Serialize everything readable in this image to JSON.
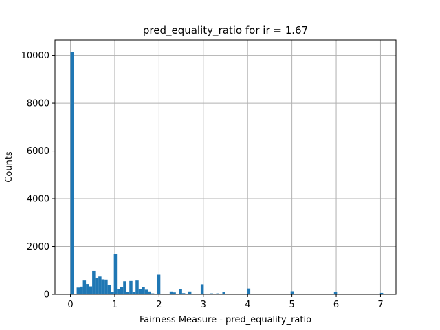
{
  "chart_data": {
    "type": "bar",
    "title": "pred_equality_ratio for ir = 1.67",
    "xlabel": "Fairness Measure - pred_equality_ratio",
    "ylabel": "Counts",
    "xlim": [
      -0.35,
      7.35
    ],
    "ylim": [
      0,
      10650
    ],
    "x_ticks": [
      0,
      1,
      2,
      3,
      4,
      5,
      6,
      7
    ],
    "x_tick_labels": [
      "0",
      "1",
      "2",
      "3",
      "4",
      "5",
      "6",
      "7"
    ],
    "y_ticks": [
      0,
      2000,
      4000,
      6000,
      8000,
      10000
    ],
    "y_tick_labels": [
      "0",
      "2000",
      "4000",
      "6000",
      "8000",
      "10000"
    ],
    "grid": true,
    "bin_width": 0.07,
    "bins": [
      {
        "x": 0.0,
        "count": 10150
      },
      {
        "x": 0.14,
        "count": 280
      },
      {
        "x": 0.21,
        "count": 320
      },
      {
        "x": 0.28,
        "count": 600
      },
      {
        "x": 0.35,
        "count": 430
      },
      {
        "x": 0.42,
        "count": 330
      },
      {
        "x": 0.49,
        "count": 980
      },
      {
        "x": 0.56,
        "count": 680
      },
      {
        "x": 0.63,
        "count": 740
      },
      {
        "x": 0.7,
        "count": 620
      },
      {
        "x": 0.77,
        "count": 610
      },
      {
        "x": 0.84,
        "count": 390
      },
      {
        "x": 0.91,
        "count": 110
      },
      {
        "x": 0.98,
        "count": 1690
      },
      {
        "x": 1.05,
        "count": 220
      },
      {
        "x": 1.12,
        "count": 310
      },
      {
        "x": 1.19,
        "count": 540
      },
      {
        "x": 1.26,
        "count": 100
      },
      {
        "x": 1.33,
        "count": 580
      },
      {
        "x": 1.4,
        "count": 100
      },
      {
        "x": 1.47,
        "count": 600
      },
      {
        "x": 1.54,
        "count": 220
      },
      {
        "x": 1.61,
        "count": 300
      },
      {
        "x": 1.68,
        "count": 190
      },
      {
        "x": 1.75,
        "count": 120
      },
      {
        "x": 1.82,
        "count": 40
      },
      {
        "x": 1.96,
        "count": 820
      },
      {
        "x": 2.24,
        "count": 120
      },
      {
        "x": 2.31,
        "count": 80
      },
      {
        "x": 2.45,
        "count": 230
      },
      {
        "x": 2.52,
        "count": 50
      },
      {
        "x": 2.66,
        "count": 120
      },
      {
        "x": 2.94,
        "count": 420
      },
      {
        "x": 3.15,
        "count": 40
      },
      {
        "x": 3.29,
        "count": 40
      },
      {
        "x": 3.43,
        "count": 90
      },
      {
        "x": 3.99,
        "count": 240
      },
      {
        "x": 4.97,
        "count": 130
      },
      {
        "x": 5.95,
        "count": 90
      },
      {
        "x": 6.99,
        "count": 60
      }
    ],
    "colors": {
      "bar": "#1f77b4",
      "grid": "#b0b0b0",
      "axes": "#000000"
    }
  }
}
